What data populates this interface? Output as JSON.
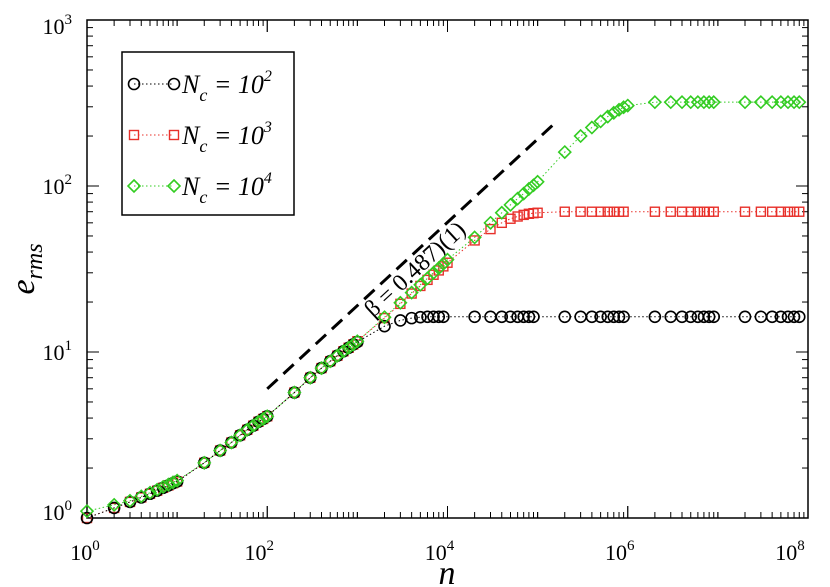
{
  "chart_data": {
    "type": "scatter",
    "title": "",
    "xlabel": "n",
    "ylabel": "e_rms",
    "xscale": "log",
    "yscale": "log",
    "xlim": [
      1,
      100000000
    ],
    "ylim": [
      1,
      1000
    ],
    "grid": false,
    "legend_placement": "top-left",
    "x_ticks": [
      {
        "value": 1,
        "base": "10",
        "exp": "0"
      },
      {
        "value": 100,
        "base": "10",
        "exp": "2"
      },
      {
        "value": 10000,
        "base": "10",
        "exp": "4"
      },
      {
        "value": 1000000,
        "base": "10",
        "exp": "6"
      },
      {
        "value": 100000000,
        "base": "10",
        "exp": "8"
      }
    ],
    "y_ticks": [
      {
        "value": 1,
        "base": "10",
        "exp": "0"
      },
      {
        "value": 10,
        "base": "10",
        "exp": "1"
      },
      {
        "value": 100,
        "base": "10",
        "exp": "2"
      },
      {
        "value": 1000,
        "base": "10",
        "exp": "3"
      }
    ],
    "annotation": {
      "text": "β = 0.487)(1)",
      "line_from": {
        "x": 100,
        "y": 6.0
      },
      "line_to": {
        "x": 150000,
        "y": 235
      }
    },
    "series": [
      {
        "name_main": "N",
        "name_sub": "c",
        "name_eq": " = 10",
        "name_exp": "2",
        "marker": "circle",
        "color": "#000000",
        "x": [
          1,
          2,
          3,
          4,
          5,
          6,
          7,
          8,
          9,
          10,
          20,
          30,
          40,
          50,
          60,
          70,
          80,
          90,
          100,
          200,
          300,
          400,
          500,
          600,
          700,
          800,
          900,
          1000,
          2000,
          3000,
          4000,
          5000,
          6000,
          7000,
          8000,
          9000,
          20000,
          30000,
          40000,
          50000,
          60000,
          70000,
          80000,
          90000,
          200000,
          300000,
          400000,
          500000,
          600000,
          700000,
          800000,
          900000,
          2000000,
          3000000,
          4000000,
          5000000,
          6000000,
          7000000,
          8000000,
          9000000,
          20000000,
          30000000,
          40000000,
          50000000,
          60000000,
          70000000,
          80000000
        ],
        "y": [
          1.0,
          1.15,
          1.25,
          1.33,
          1.4,
          1.46,
          1.52,
          1.57,
          1.62,
          1.66,
          2.15,
          2.55,
          2.85,
          3.15,
          3.4,
          3.6,
          3.8,
          3.95,
          4.1,
          5.7,
          7.0,
          8.0,
          8.8,
          9.5,
          10.1,
          10.6,
          11.1,
          11.5,
          14.3,
          15.5,
          16.0,
          16.2,
          16.3,
          16.3,
          16.3,
          16.3,
          16.3,
          16.3,
          16.3,
          16.3,
          16.3,
          16.3,
          16.3,
          16.3,
          16.3,
          16.3,
          16.3,
          16.3,
          16.3,
          16.3,
          16.3,
          16.3,
          16.3,
          16.3,
          16.3,
          16.3,
          16.3,
          16.3,
          16.3,
          16.3,
          16.3,
          16.3,
          16.3,
          16.3,
          16.3,
          16.3,
          16.3
        ]
      },
      {
        "name_main": "N",
        "name_sub": "c",
        "name_eq": " = 10",
        "name_exp": "3",
        "marker": "square",
        "color": "#e8302a",
        "x": [
          1,
          2,
          3,
          4,
          5,
          6,
          7,
          8,
          9,
          10,
          20,
          30,
          40,
          50,
          60,
          70,
          80,
          90,
          100,
          200,
          300,
          400,
          500,
          600,
          700,
          800,
          900,
          1000,
          2000,
          3000,
          4000,
          5000,
          6000,
          7000,
          8000,
          9000,
          10000,
          20000,
          30000,
          40000,
          50000,
          60000,
          70000,
          80000,
          90000,
          100000,
          200000,
          300000,
          400000,
          500000,
          600000,
          700000,
          800000,
          900000,
          2000000,
          3000000,
          4000000,
          5000000,
          6000000,
          7000000,
          8000000,
          9000000,
          20000000,
          30000000,
          40000000,
          50000000,
          60000000,
          70000000,
          80000000
        ],
        "y": [
          1.0,
          1.15,
          1.25,
          1.33,
          1.4,
          1.46,
          1.52,
          1.57,
          1.62,
          1.66,
          2.15,
          2.55,
          2.85,
          3.15,
          3.4,
          3.6,
          3.8,
          3.95,
          4.1,
          5.7,
          7.0,
          8.0,
          8.8,
          9.5,
          10.1,
          10.6,
          11.1,
          11.6,
          16.0,
          19.5,
          22.5,
          25.0,
          27.2,
          29.2,
          31.0,
          32.8,
          34.5,
          47.0,
          55.0,
          60.0,
          63.5,
          65.5,
          67.0,
          68.0,
          68.6,
          69.0,
          70.0,
          70.0,
          70.0,
          70.0,
          70.0,
          70.0,
          70.0,
          70.0,
          70.0,
          70.0,
          70.0,
          70.0,
          70.0,
          70.0,
          70.0,
          70.0,
          70.0,
          70.0,
          70.0,
          70.0,
          70.0,
          70.0,
          70.0
        ]
      },
      {
        "name_main": "N",
        "name_sub": "c",
        "name_eq": " = 10",
        "name_exp": "4",
        "marker": "diamond",
        "color": "#33cc22",
        "x": [
          1,
          2,
          3,
          4,
          5,
          6,
          7,
          8,
          9,
          10,
          20,
          30,
          40,
          50,
          60,
          70,
          80,
          90,
          100,
          200,
          300,
          400,
          500,
          600,
          700,
          800,
          900,
          1000,
          2000,
          3000,
          4000,
          5000,
          6000,
          7000,
          8000,
          9000,
          10000,
          20000,
          30000,
          40000,
          50000,
          60000,
          70000,
          80000,
          90000,
          100000,
          200000,
          300000,
          400000,
          500000,
          600000,
          700000,
          800000,
          900000,
          1000000,
          2000000,
          3000000,
          4000000,
          5000000,
          6000000,
          7000000,
          8000000,
          9000000,
          20000000,
          30000000,
          40000000,
          50000000,
          60000000,
          70000000,
          80000000
        ],
        "y": [
          1.1,
          1.2,
          1.27,
          1.35,
          1.42,
          1.48,
          1.54,
          1.59,
          1.64,
          1.68,
          2.15,
          2.55,
          2.85,
          3.15,
          3.4,
          3.6,
          3.8,
          3.95,
          4.1,
          5.7,
          7.0,
          8.0,
          8.8,
          9.5,
          10.1,
          10.6,
          11.1,
          11.6,
          16.2,
          19.8,
          22.8,
          25.4,
          27.8,
          30.0,
          32.0,
          34.0,
          36.0,
          49.0,
          60.0,
          69.0,
          77.0,
          84.0,
          90.0,
          96.0,
          101.0,
          106.0,
          160.0,
          200.0,
          225.0,
          245.0,
          262.0,
          276.0,
          288.0,
          298.0,
          305.0,
          320.0,
          320.0,
          320.0,
          320.0,
          320.0,
          320.0,
          320.0,
          320.0,
          320.0,
          320.0,
          320.0,
          320.0,
          320.0,
          320.0,
          320.0
        ]
      }
    ]
  }
}
